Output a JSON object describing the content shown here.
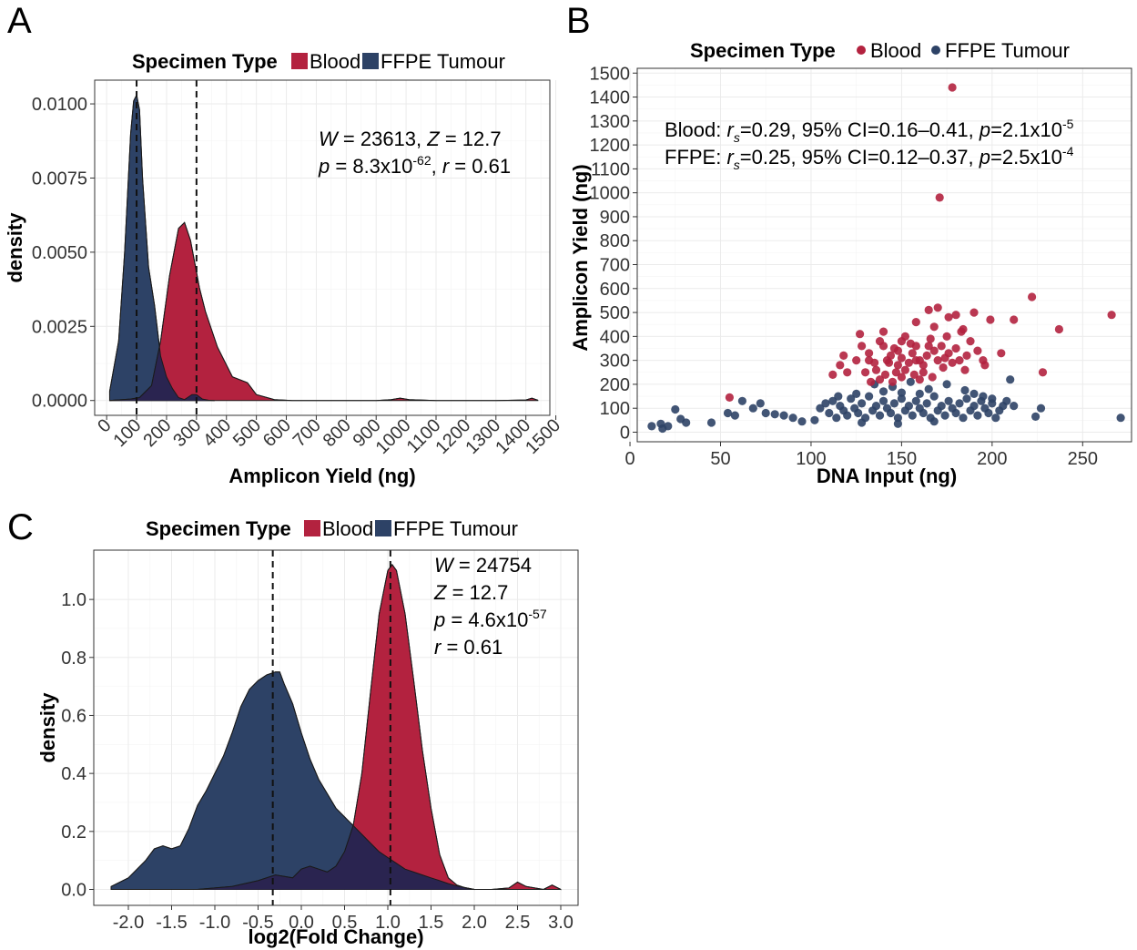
{
  "colors": {
    "blood": "#b3223f",
    "ffpe": "#2d4266",
    "overlap": "#2a2450"
  },
  "panels": {
    "A": {
      "letter": "A"
    },
    "B": {
      "letter": "B"
    },
    "C": {
      "letter": "C"
    }
  },
  "chart_data": [
    {
      "id": "A",
      "type": "area",
      "legend": {
        "title": "Specimen Type",
        "position": "top",
        "entries": [
          "Blood",
          "FFPE Tumour"
        ]
      },
      "xlabel": "Amplicon Yield (ng)",
      "ylabel": "density",
      "xlim": [
        -40,
        1480
      ],
      "ylim": [
        -0.0005,
        0.0108
      ],
      "xticks": [
        "0",
        "100",
        "200",
        "300",
        "400",
        "500",
        "600",
        "700",
        "800",
        "900",
        "1000",
        "1100",
        "1200",
        "1300",
        "1400",
        "1500"
      ],
      "yticks": [
        "0.0000",
        "0.0025",
        "0.0050",
        "0.0075",
        "0.0100"
      ],
      "vlines": [
        100,
        300
      ],
      "annotation": {
        "line1": "W = 23613, Z = 12.7",
        "line2": "p = 8.3x10-62, r = 0.61",
        "W": "23613",
        "Z": "12.7",
        "p": "8.3x10",
        "p_exp": "-62",
        "r": "0.61"
      },
      "series": [
        {
          "name": "Blood",
          "x": [
            10,
            80,
            110,
            150,
            180,
            210,
            240,
            260,
            280,
            310,
            330,
            370,
            420,
            470,
            500,
            560,
            620,
            700,
            800,
            900,
            950,
            980,
            1010,
            1100,
            1200,
            1300,
            1400,
            1420,
            1440
          ],
          "values": [
            0.0,
            5e-05,
            0.0001,
            0.0005,
            0.002,
            0.0042,
            0.0058,
            0.006,
            0.0054,
            0.0038,
            0.003,
            0.0018,
            0.0008,
            0.0006,
            0.0002,
            3e-05,
            0.0,
            0.0,
            0.0,
            0.0,
            3e-05,
            8e-05,
            3e-05,
            0.0,
            0.0,
            0.0,
            2e-05,
            8e-05,
            1e-05
          ]
        },
        {
          "name": "FFPE Tumour",
          "x": [
            10,
            40,
            60,
            80,
            90,
            100,
            110,
            120,
            140,
            160,
            180,
            200,
            220,
            240,
            260,
            270,
            285,
            300,
            320,
            340,
            360
          ],
          "values": [
            0.0003,
            0.002,
            0.005,
            0.009,
            0.0101,
            0.0103,
            0.0098,
            0.0075,
            0.0045,
            0.0032,
            0.0015,
            0.0008,
            0.0004,
            0.0001,
            3e-05,
            0.0001,
            0.0002,
            0.0002,
            5e-05,
            1e-05,
            0.0
          ]
        }
      ]
    },
    {
      "id": "B",
      "type": "scatter",
      "legend": {
        "title": "Specimen Type",
        "position": "top",
        "entries": [
          "Blood",
          "FFPE Tumour"
        ]
      },
      "xlabel": "DNA Input (ng)",
      "ylabel": "Amplicon Yield (ng)",
      "xlim": [
        4,
        277
      ],
      "ylim": [
        -40,
        1520
      ],
      "xticks": [
        "0",
        "50",
        "100",
        "150",
        "200",
        "250"
      ],
      "yticks": [
        "0",
        "100",
        "200",
        "300",
        "400",
        "500",
        "600",
        "700",
        "800",
        "900",
        "1000",
        "1100",
        "1200",
        "1300",
        "1400",
        "1500"
      ],
      "annotation": {
        "blood": {
          "label": "Blood: ",
          "rs": "=0.29, 95% CI=0.16–0.41, ",
          "p": "=2.1x10",
          "p_exp": "-5"
        },
        "ffpe": {
          "label": "FFPE: ",
          "rs": "=0.25, 95% CI=0.12–0.37, ",
          "p": "=2.5x10",
          "p_exp": "-4"
        }
      },
      "series": [
        {
          "name": "Blood",
          "points": [
            [
              178,
              1440
            ],
            [
              171,
              980
            ],
            [
              266,
              490
            ],
            [
              237,
              430
            ],
            [
              222,
              565
            ],
            [
              212,
              470
            ],
            [
              228,
              250
            ],
            [
              205,
              330
            ],
            [
              180,
              490
            ],
            [
              176,
              480
            ],
            [
              184,
              430
            ],
            [
              190,
              500
            ],
            [
              199,
              470
            ],
            [
              165,
              510
            ],
            [
              170,
              520
            ],
            [
              158,
              460
            ],
            [
              168,
              440
            ],
            [
              55,
              145
            ],
            [
              125,
              300
            ],
            [
              128,
              360
            ],
            [
              132,
              330
            ],
            [
              135,
              290
            ],
            [
              138,
              380
            ],
            [
              140,
              420
            ],
            [
              142,
              300
            ],
            [
              144,
              320
            ],
            [
              146,
              350
            ],
            [
              148,
              280
            ],
            [
              150,
              310
            ],
            [
              152,
              400
            ],
            [
              154,
              290
            ],
            [
              156,
              330
            ],
            [
              158,
              360
            ],
            [
              160,
              300
            ],
            [
              162,
              280
            ],
            [
              164,
              320
            ],
            [
              166,
              390
            ],
            [
              168,
              340
            ],
            [
              170,
              300
            ],
            [
              172,
              360
            ],
            [
              174,
              310
            ],
            [
              176,
              330
            ],
            [
              178,
              290
            ],
            [
              180,
              350
            ],
            [
              182,
              300
            ],
            [
              186,
              320
            ],
            [
              188,
              380
            ],
            [
              192,
              340
            ],
            [
              195,
              300
            ],
            [
              120,
              250
            ],
            [
              118,
              320
            ],
            [
              130,
              250
            ],
            [
              136,
              260
            ],
            [
              141,
              240
            ],
            [
              147,
              250
            ],
            [
              152,
              260
            ],
            [
              157,
              240
            ],
            [
              162,
              250
            ],
            [
              167,
              230
            ],
            [
              173,
              270
            ],
            [
              145,
              210
            ],
            [
              150,
              230
            ],
            [
              133,
              210
            ],
            [
              138,
              220
            ],
            [
              160,
              220
            ],
            [
              185,
              260
            ],
            [
              196,
              280
            ],
            [
              116,
              280
            ],
            [
              112,
              240
            ],
            [
              127,
              410
            ],
            [
              150,
              380
            ],
            [
              155,
              370
            ],
            [
              165,
              360
            ],
            [
              140,
              360
            ],
            [
              132,
              300
            ],
            [
              158,
              300
            ],
            [
              175,
              400
            ],
            [
              183,
              420
            ],
            [
              143,
              290
            ],
            [
              148,
              340
            ]
          ]
        },
        {
          "name": "FFPE Tumour",
          "points": [
            [
              12,
              25
            ],
            [
              17,
              35
            ],
            [
              18,
              15
            ],
            [
              21,
              25
            ],
            [
              25,
              95
            ],
            [
              28,
              55
            ],
            [
              31,
              40
            ],
            [
              45,
              40
            ],
            [
              54,
              80
            ],
            [
              58,
              70
            ],
            [
              62,
              130
            ],
            [
              68,
              100
            ],
            [
              72,
              120
            ],
            [
              75,
              80
            ],
            [
              80,
              75
            ],
            [
              85,
              70
            ],
            [
              90,
              60
            ],
            [
              95,
              45
            ],
            [
              102,
              50
            ],
            [
              105,
              100
            ],
            [
              108,
              120
            ],
            [
              110,
              80
            ],
            [
              112,
              130
            ],
            [
              114,
              60
            ],
            [
              116,
              110
            ],
            [
              118,
              90
            ],
            [
              120,
              70
            ],
            [
              122,
              140
            ],
            [
              124,
              100
            ],
            [
              126,
              80
            ],
            [
              128,
              120
            ],
            [
              130,
              60
            ],
            [
              132,
              150
            ],
            [
              134,
              90
            ],
            [
              136,
              110
            ],
            [
              138,
              70
            ],
            [
              140,
              130
            ],
            [
              142,
              100
            ],
            [
              144,
              80
            ],
            [
              146,
              120
            ],
            [
              148,
              60
            ],
            [
              150,
              140
            ],
            [
              152,
              90
            ],
            [
              154,
              110
            ],
            [
              156,
              70
            ],
            [
              158,
              130
            ],
            [
              160,
              100
            ],
            [
              162,
              80
            ],
            [
              164,
              120
            ],
            [
              166,
              60
            ],
            [
              168,
              150
            ],
            [
              170,
              90
            ],
            [
              172,
              110
            ],
            [
              174,
              70
            ],
            [
              176,
              130
            ],
            [
              178,
              100
            ],
            [
              180,
              80
            ],
            [
              182,
              120
            ],
            [
              184,
              60
            ],
            [
              186,
              140
            ],
            [
              188,
              90
            ],
            [
              190,
              110
            ],
            [
              192,
              70
            ],
            [
              194,
              130
            ],
            [
              196,
              100
            ],
            [
              198,
              80
            ],
            [
              200,
              120
            ],
            [
              202,
              60
            ],
            [
              204,
              90
            ],
            [
              206,
              110
            ],
            [
              208,
              130
            ],
            [
              210,
              220
            ],
            [
              212,
              110
            ],
            [
              224,
              65
            ],
            [
              227,
              100
            ],
            [
              271,
              60
            ],
            [
              135,
              200
            ],
            [
              145,
              190
            ],
            [
              155,
              210
            ],
            [
              165,
              180
            ],
            [
              175,
              200
            ],
            [
              125,
              160
            ],
            [
              140,
              170
            ],
            [
              160,
              160
            ],
            [
              115,
              150
            ],
            [
              150,
              165
            ],
            [
              185,
              175
            ],
            [
              190,
              160
            ],
            [
              195,
              150
            ],
            [
              200,
              140
            ],
            [
              128,
              40
            ],
            [
              148,
              35
            ],
            [
              168,
              45
            ]
          ]
        }
      ]
    },
    {
      "id": "C",
      "type": "area",
      "legend": {
        "title": "Specimen Type",
        "position": "top",
        "entries": [
          "Blood",
          "FFPE Tumour"
        ]
      },
      "xlabel": "log2(Fold Change)",
      "ylabel": "density",
      "xlim": [
        -2.4,
        3.2
      ],
      "ylim": [
        -0.055,
        1.17
      ],
      "xticks": [
        "-2.0",
        "-1.5",
        "-1.0",
        "-0.5",
        "0.0",
        "0.5",
        "1.0",
        "1.5",
        "2.0",
        "2.5",
        "3.0"
      ],
      "yticks": [
        "0.0",
        "0.2",
        "0.4",
        "0.6",
        "0.8",
        "1.0"
      ],
      "vlines": [
        -0.33,
        1.03
      ],
      "annotation": {
        "W": "24754",
        "Z": "12.7",
        "p": "4.6x10",
        "p_exp": "-57",
        "r": "0.61"
      },
      "series": [
        {
          "name": "Blood",
          "x": [
            -2.2,
            -1.2,
            -0.8,
            -0.5,
            -0.3,
            -0.1,
            0.0,
            0.1,
            0.2,
            0.3,
            0.4,
            0.5,
            0.6,
            0.7,
            0.8,
            0.9,
            1.0,
            1.05,
            1.1,
            1.2,
            1.3,
            1.4,
            1.5,
            1.6,
            1.7,
            1.8,
            1.9,
            2.0,
            2.2,
            2.4,
            2.5,
            2.6,
            2.8,
            2.9,
            3.0
          ],
          "values": [
            0.0,
            0.0,
            0.01,
            0.03,
            0.05,
            0.04,
            0.07,
            0.08,
            0.07,
            0.06,
            0.08,
            0.13,
            0.22,
            0.4,
            0.68,
            0.95,
            1.1,
            1.12,
            1.1,
            0.95,
            0.72,
            0.48,
            0.28,
            0.12,
            0.04,
            0.015,
            0.005,
            0.0,
            0.0,
            0.005,
            0.025,
            0.01,
            0.0,
            0.015,
            0.0
          ]
        },
        {
          "name": "FFPE Tumour",
          "x": [
            -2.2,
            -2.0,
            -1.8,
            -1.7,
            -1.6,
            -1.5,
            -1.4,
            -1.3,
            -1.2,
            -1.1,
            -1.0,
            -0.9,
            -0.8,
            -0.7,
            -0.6,
            -0.5,
            -0.4,
            -0.3,
            -0.25,
            -0.2,
            -0.1,
            0.0,
            0.1,
            0.2,
            0.3,
            0.4,
            0.5,
            0.6,
            0.7,
            0.8,
            0.9,
            1.0,
            1.1,
            1.2,
            1.3,
            1.4,
            1.5,
            1.6,
            1.7,
            1.8,
            1.9,
            2.0
          ],
          "values": [
            0.01,
            0.04,
            0.1,
            0.14,
            0.15,
            0.14,
            0.15,
            0.21,
            0.29,
            0.34,
            0.4,
            0.46,
            0.54,
            0.63,
            0.69,
            0.72,
            0.74,
            0.75,
            0.75,
            0.71,
            0.64,
            0.54,
            0.45,
            0.38,
            0.33,
            0.28,
            0.25,
            0.22,
            0.19,
            0.16,
            0.13,
            0.11,
            0.09,
            0.07,
            0.06,
            0.05,
            0.04,
            0.03,
            0.02,
            0.012,
            0.006,
            0.0
          ]
        }
      ]
    }
  ]
}
